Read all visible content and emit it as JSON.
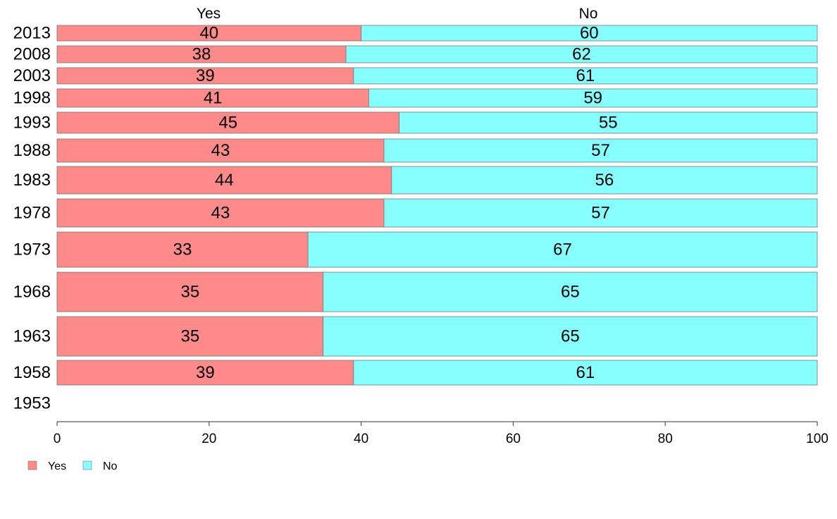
{
  "chart_data": {
    "type": "bar",
    "orientation": "horizontal",
    "stacked": true,
    "categories": [
      "2013",
      "2008",
      "2003",
      "1998",
      "1993",
      "1988",
      "1983",
      "1978",
      "1973",
      "1968",
      "1963",
      "1958",
      "1953"
    ],
    "series": [
      {
        "name": "Yes",
        "color": "#FF8A8A",
        "values": [
          40,
          38,
          39,
          41,
          45,
          43,
          44,
          43,
          33,
          35,
          35,
          39,
          null
        ],
        "labels": [
          "40",
          "38",
          "39",
          "41",
          "45",
          "43",
          "44",
          "43",
          "33",
          "35",
          "35",
          "39",
          ""
        ]
      },
      {
        "name": "No",
        "color": "#87FFFF",
        "values": [
          60,
          62,
          61,
          59,
          55,
          57,
          56,
          57,
          67,
          65,
          65,
          61,
          null
        ],
        "labels": [
          "60",
          "62",
          "61",
          "59",
          "55",
          "57",
          "56",
          "57",
          "67",
          "65",
          "65",
          "61",
          ""
        ]
      }
    ],
    "xlim": [
      0,
      100
    ],
    "xticks": [
      "0",
      "20",
      "40",
      "60",
      "80",
      "100"
    ],
    "column_headers": [
      "Yes",
      "No"
    ],
    "legend": {
      "position": "bottom-left",
      "entries": [
        "Yes",
        "No"
      ]
    },
    "grid": false
  }
}
